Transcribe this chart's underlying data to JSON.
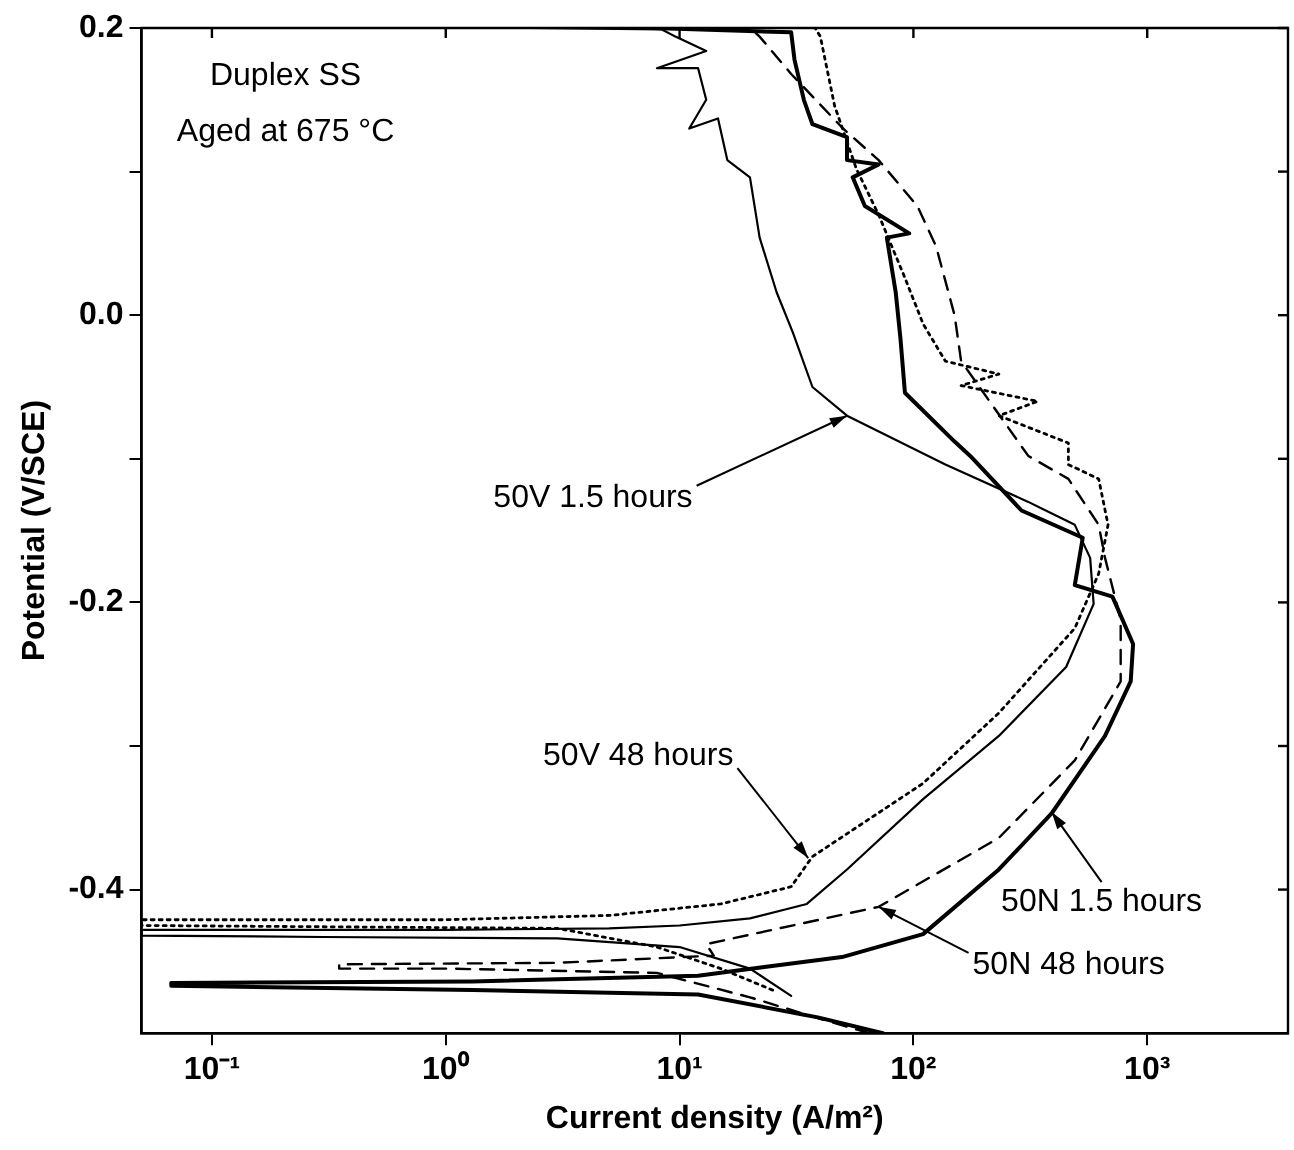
{
  "chart_data": {
    "type": "line",
    "xlabel": "Current density (A/m²)",
    "ylabel": "Potential (V/SCE)",
    "log": "x",
    "grid": false,
    "legend": false,
    "marker": "none",
    "xlim": [
      0.05,
      4000
    ],
    "ylim": [
      -0.5,
      0.2
    ],
    "xticks": [
      {
        "value": 0.1,
        "label": "10⁻¹"
      },
      {
        "value": 1,
        "label": "10⁰"
      },
      {
        "value": 10,
        "label": "10¹"
      },
      {
        "value": 100,
        "label": "10²"
      },
      {
        "value": 1000,
        "label": "10³"
      }
    ],
    "yticks": [
      {
        "value": -0.4,
        "label": "-0.4"
      },
      {
        "value": -0.3,
        "label": null
      },
      {
        "value": -0.2,
        "label": "-0.2"
      },
      {
        "value": -0.1,
        "label": null
      },
      {
        "value": 0,
        "label": "0.0"
      },
      {
        "value": 0.1,
        "label": null
      },
      {
        "value": 0.2,
        "label": "0.2"
      }
    ],
    "annotations": [
      "Duplex SS",
      "Aged at 675 °C",
      {
        "text": "50V 1.5 hours",
        "x": 52,
        "y": -0.07
      },
      {
        "text": "50V 48 hours",
        "x": 35.5,
        "y": -0.378
      },
      {
        "text": "50N 1.5 hours",
        "x": 390,
        "y": -0.346
      },
      {
        "text": "50N 48 hours",
        "x": 71,
        "y": -0.412
      }
    ],
    "series": [
      {
        "color": "#000000",
        "line_style": "solid",
        "x": [
          30,
          20,
          10,
          3,
          0.3,
          0.05,
          0.05,
          1,
          5,
          10,
          20,
          35,
          52,
          110,
          232,
          450,
          590,
          570,
          490,
          310,
          137,
          52,
          37,
          30.5,
          26,
          22,
          20,
          16,
          14.6,
          11,
          13,
          12,
          8,
          13,
          9.6,
          8.4,
          2.3
        ],
        "values": [
          -0.474,
          -0.455,
          -0.44,
          -0.434,
          -0.433,
          -0.432,
          -0.428,
          -0.428,
          -0.427,
          -0.425,
          -0.42,
          -0.41,
          -0.386,
          -0.337,
          -0.293,
          -0.245,
          -0.201,
          -0.169,
          -0.146,
          -0.13,
          -0.104,
          -0.07,
          -0.05,
          -0.012,
          0.016,
          0.054,
          0.096,
          0.108,
          0.137,
          0.13,
          0.15,
          0.172,
          0.172,
          0.184,
          0.194,
          0.199,
          0.2
        ]
      },
      {
        "color": "#000000",
        "line_style": "solid",
        "x": [
          74,
          39,
          12,
          1.3,
          0.067,
          0.067,
          1.3,
          12,
          22.6,
          49.5,
          110,
          232,
          390,
          660,
          850,
          870,
          710,
          490,
          530,
          290,
          175,
          150,
          92,
          88,
          84,
          77,
          96,
          62,
          55,
          71,
          52,
          52,
          37,
          34,
          31,
          30,
          7.7
        ],
        "values": [
          -0.5,
          -0.489,
          -0.473,
          -0.47,
          -0.467,
          -0.465,
          -0.464,
          -0.46,
          -0.454,
          -0.447,
          -0.431,
          -0.386,
          -0.347,
          -0.293,
          -0.255,
          -0.229,
          -0.196,
          -0.188,
          -0.155,
          -0.136,
          -0.098,
          -0.088,
          -0.054,
          -0.016,
          0.016,
          0.054,
          0.057,
          0.076,
          0.096,
          0.105,
          0.108,
          0.124,
          0.133,
          0.15,
          0.178,
          0.197,
          0.2
        ]
      },
      {
        "color": "#000000",
        "line_style": "dotted",
        "x": [
          25,
          15,
          8,
          3,
          0.05,
          0.05,
          1,
          5,
          15,
          30,
          37,
          110,
          232,
          490,
          620,
          680,
          620,
          460,
          460,
          232,
          340,
          160,
          232,
          137,
          110,
          92,
          71,
          57,
          46,
          40,
          38
        ],
        "values": [
          -0.47,
          -0.455,
          -0.44,
          -0.427,
          -0.425,
          -0.421,
          -0.421,
          -0.418,
          -0.41,
          -0.398,
          -0.377,
          -0.326,
          -0.277,
          -0.218,
          -0.18,
          -0.146,
          -0.114,
          -0.104,
          -0.089,
          -0.07,
          -0.06,
          -0.049,
          -0.041,
          -0.032,
          -0.006,
          0.026,
          0.07,
          0.102,
          0.146,
          0.194,
          0.2
        ]
      },
      {
        "color": "#000000",
        "line_style": "dashed",
        "x": [
          65,
          40,
          20,
          8,
          1,
          0.35,
          0.35,
          3,
          14,
          13,
          71,
          232,
          490,
          770,
          770,
          660,
          620,
          460,
          310,
          160,
          150,
          125,
          104,
          71,
          50,
          30,
          22,
          20
        ],
        "values": [
          -0.5,
          -0.49,
          -0.475,
          -0.458,
          -0.455,
          -0.455,
          -0.452,
          -0.451,
          -0.446,
          -0.438,
          -0.412,
          -0.364,
          -0.31,
          -0.255,
          -0.212,
          -0.169,
          -0.146,
          -0.114,
          -0.098,
          -0.032,
          0,
          0.048,
          0.076,
          0.108,
          0.13,
          0.168,
          0.194,
          0.2
        ]
      }
    ]
  }
}
